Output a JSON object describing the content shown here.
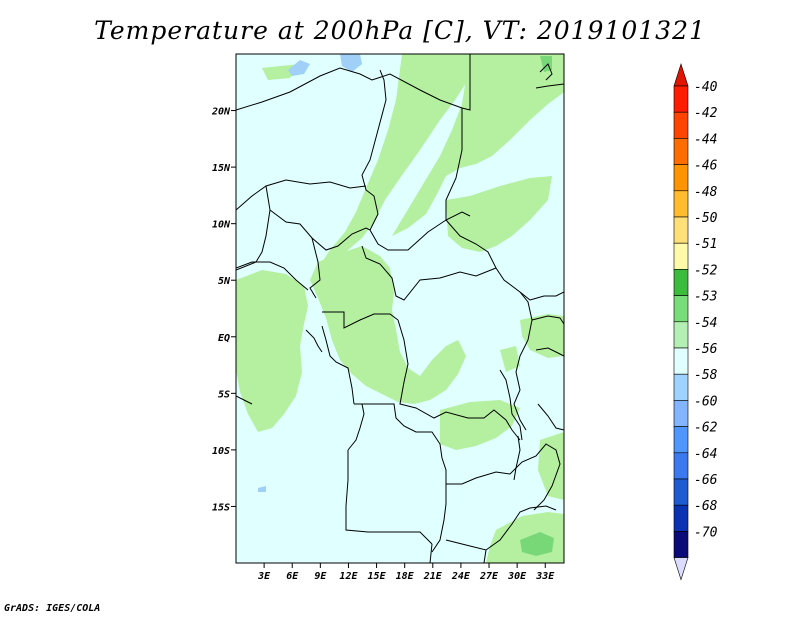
{
  "title": "Temperature at 200hPa [C], VT: 2019101321",
  "footer": "GrADS: IGES/COLA",
  "map": {
    "lat_labels": [
      "20N",
      "15N",
      "10N",
      "5N",
      "EQ",
      "5S",
      "10S",
      "15S"
    ],
    "lat_values": [
      20,
      15,
      10,
      5,
      0,
      -5,
      -10,
      -15
    ],
    "lon_labels": [
      "3E",
      "6E",
      "9E",
      "12E",
      "15E",
      "18E",
      "21E",
      "24E",
      "27E",
      "30E",
      "33E"
    ],
    "lon_values": [
      3,
      6,
      9,
      12,
      15,
      18,
      21,
      24,
      27,
      30,
      33
    ],
    "lat_range": [
      -20,
      25
    ],
    "lon_range": [
      0,
      35
    ],
    "background_color": "#e0ffff",
    "shade_light_green": "#b4f0a0",
    "shade_green": "#78d878",
    "lake_color": "#a0d0f8",
    "boundary_color": "#000000"
  },
  "colorbar": {
    "labels": [
      "-40",
      "-42",
      "-44",
      "-46",
      "-48",
      "-50",
      "-51",
      "-52",
      "-53",
      "-54",
      "-56",
      "-58",
      "-60",
      "-62",
      "-64",
      "-66",
      "-68",
      "-70"
    ],
    "colors": [
      "#ff1c00",
      "#ff4400",
      "#ff6c00",
      "#ff9400",
      "#ffbc30",
      "#ffe078",
      "#fffaaa",
      "#3cbc3c",
      "#78dc78",
      "#b4f0b4",
      "#e0ffff",
      "#a0d2ff",
      "#82b4ff",
      "#5096ff",
      "#3c78f0",
      "#1e5ad2",
      "#0c32b4",
      "#0a0a78"
    ],
    "top_arrow_color": "#e01400",
    "bottom_arrow_color": "#dcdcff"
  }
}
